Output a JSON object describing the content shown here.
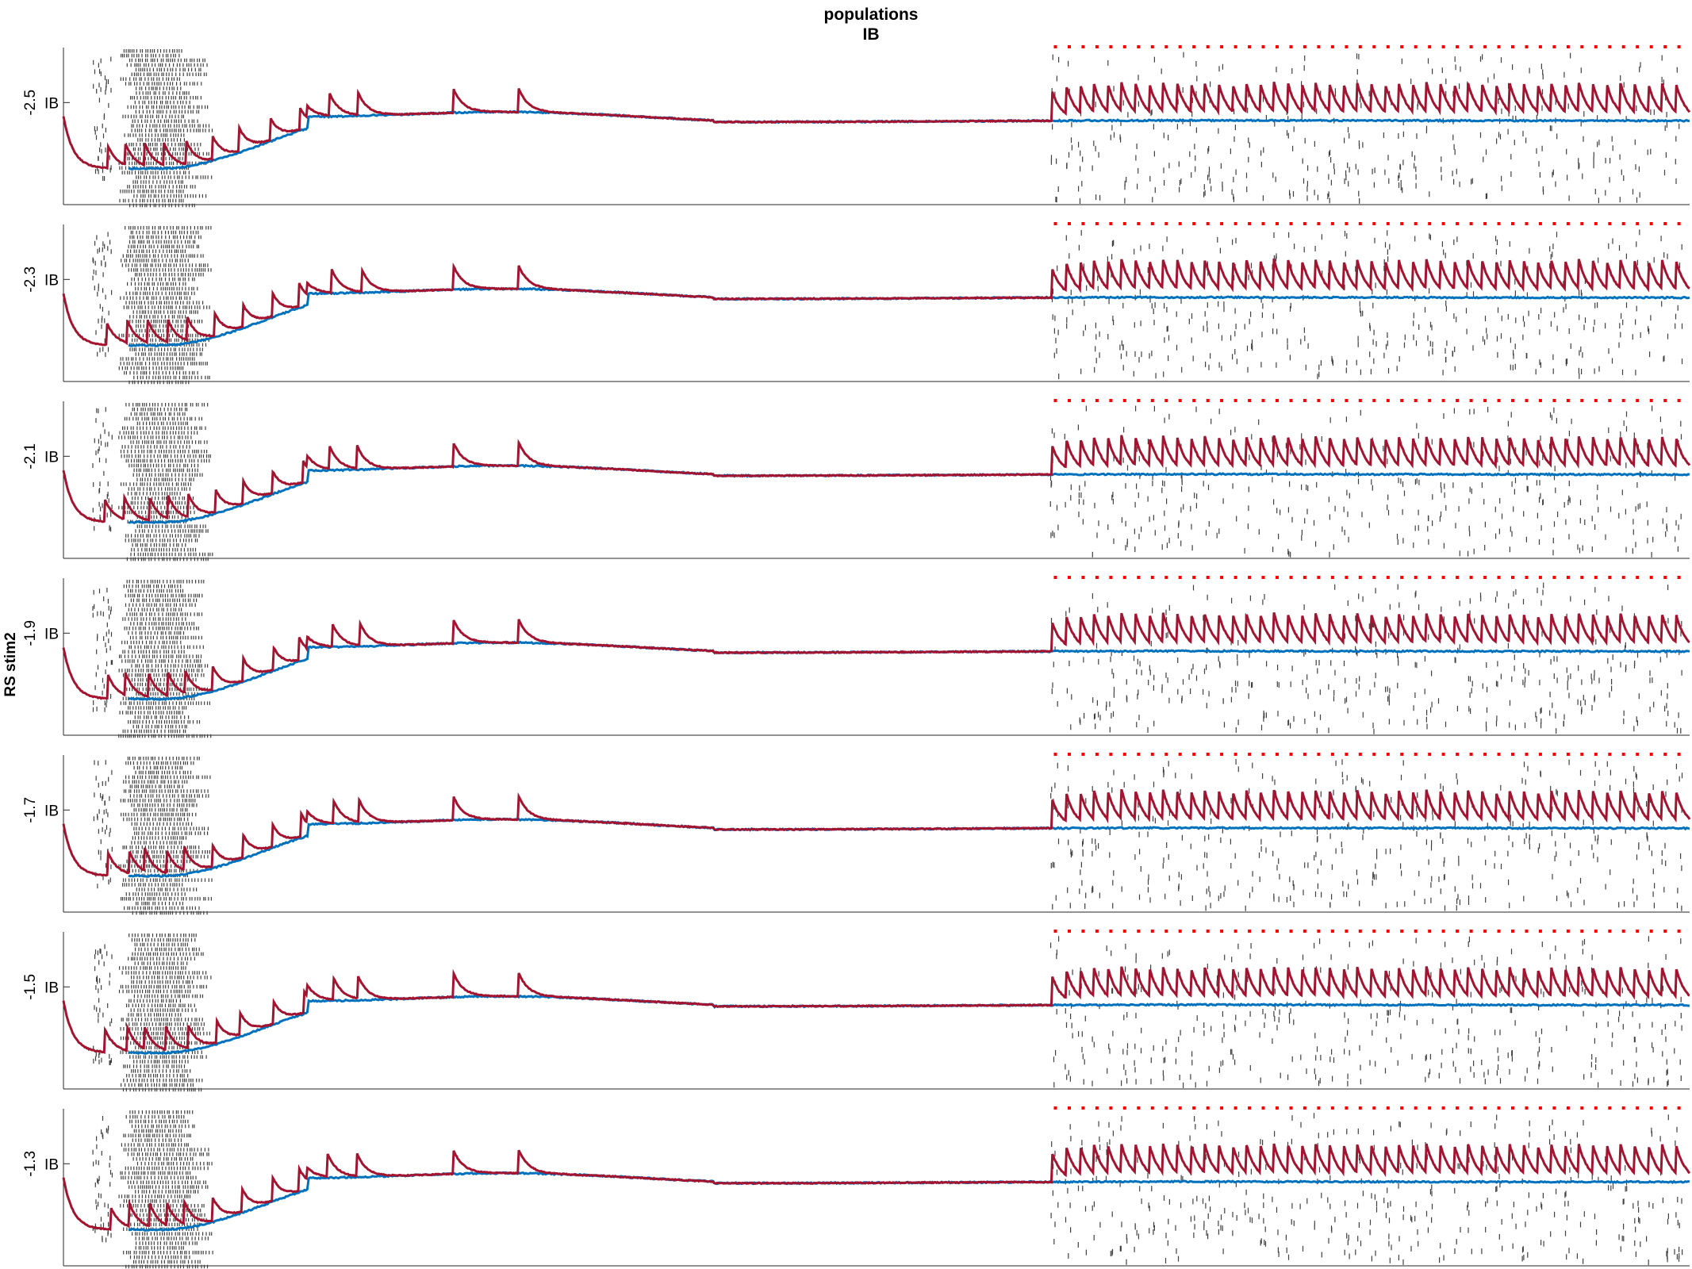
{
  "figure": {
    "title_line1": "populations",
    "title_line2": "IB",
    "ylabel": "RS stim2"
  },
  "colors": {
    "red_trace": "#A2142F",
    "blue_trace": "#0072BD",
    "raster": "#404040",
    "marker": "#FF0000",
    "axes": "#262626"
  },
  "chart_data": {
    "type": "line",
    "description_note": "",
    "x_range": [
      0,
      1
    ],
    "panels": [
      {
        "tick_label": "-2.5",
        "population": "IB"
      },
      {
        "tick_label": "-2.3",
        "population": "IB"
      },
      {
        "tick_label": "-2.1",
        "population": "IB"
      },
      {
        "tick_label": "-1.9",
        "population": "IB"
      },
      {
        "tick_label": "-1.7",
        "population": "IB"
      },
      {
        "tick_label": "-1.5",
        "population": "IB"
      },
      {
        "tick_label": "-1.3",
        "population": "IB"
      }
    ],
    "series": [
      {
        "color": "red_trace"
      },
      {
        "color": "blue_trace"
      }
    ],
    "grid": false,
    "legend": "none"
  }
}
